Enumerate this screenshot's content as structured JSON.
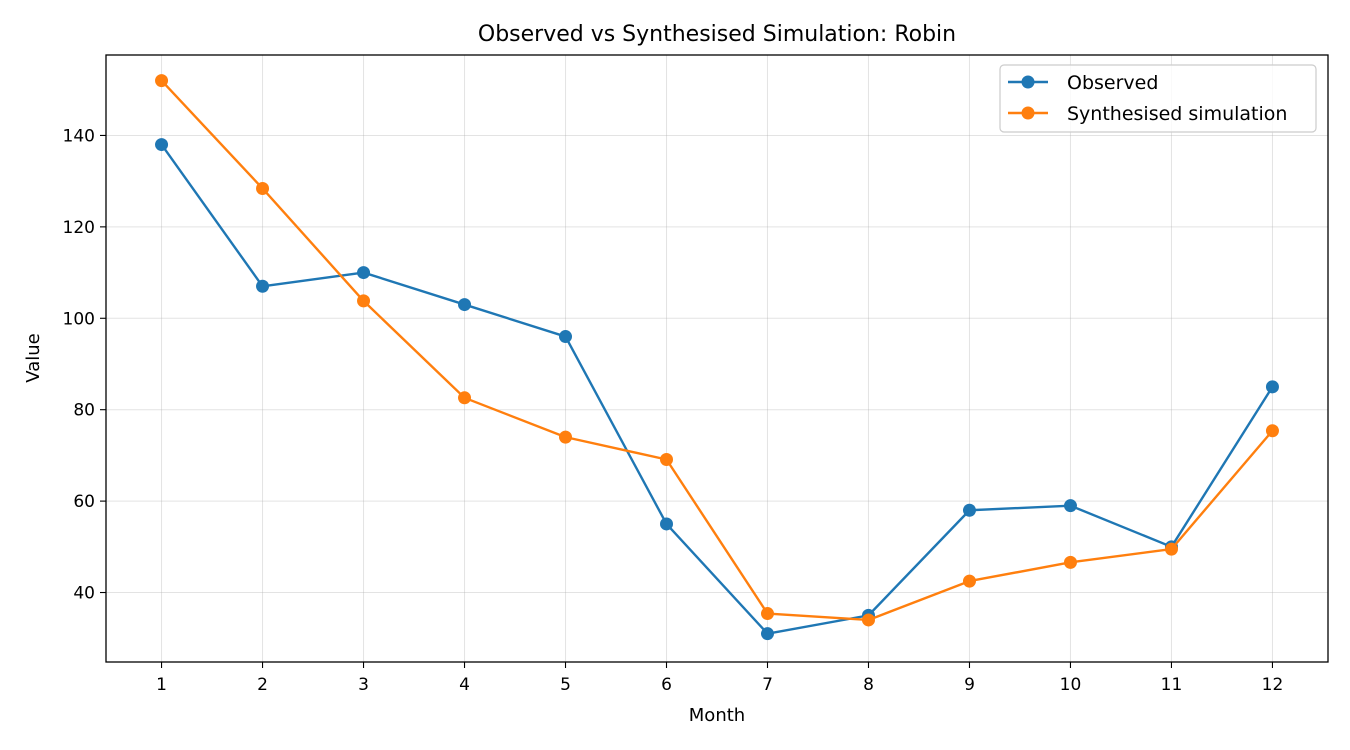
{
  "chart_data": {
    "type": "line",
    "title": "Observed vs Synthesised Simulation: Robin",
    "xlabel": "Month",
    "ylabel": "Value",
    "x": [
      1,
      2,
      3,
      4,
      5,
      6,
      7,
      8,
      9,
      10,
      11,
      12
    ],
    "xlim": [
      0.45,
      12.55
    ],
    "ylim": [
      24.8,
      157.6
    ],
    "yticks": [
      40,
      60,
      80,
      100,
      120,
      140
    ],
    "grid": true,
    "legend_position": "top-right",
    "series": [
      {
        "name": "Observed",
        "color": "#1f77b4",
        "values": [
          138,
          107,
          110,
          103,
          96,
          55,
          31,
          35,
          58,
          59,
          50,
          85
        ]
      },
      {
        "name": "Synthesised simulation",
        "color": "#ff7f0e",
        "values": [
          152,
          128.4,
          103.8,
          82.6,
          74,
          69.1,
          35.4,
          34,
          42.5,
          46.6,
          49.5,
          75.4
        ]
      }
    ]
  }
}
